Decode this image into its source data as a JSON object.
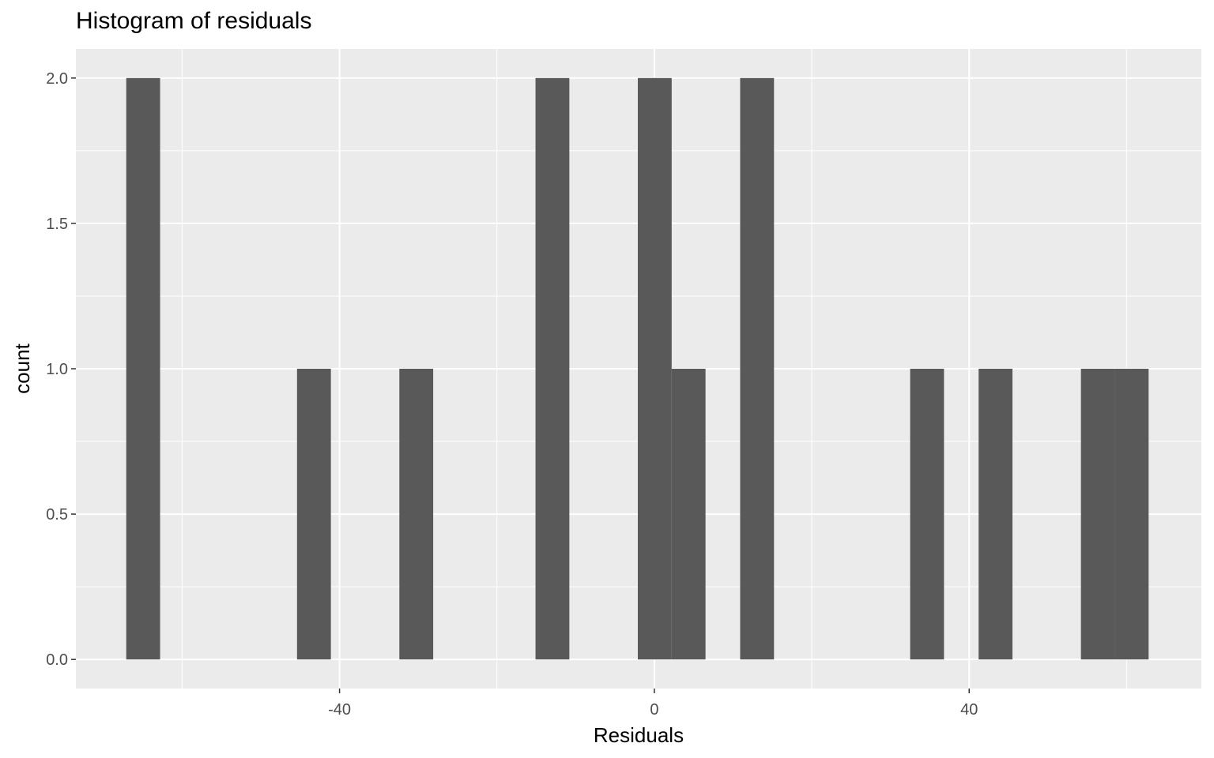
{
  "chart_data": {
    "type": "bar",
    "title": "Histogram of residuals",
    "xlabel": "Residuals",
    "ylabel": "count",
    "xlim": [
      -73.5,
      69.5
    ],
    "ylim": [
      -0.1,
      2.1
    ],
    "x_major_ticks": [
      -40,
      0,
      40
    ],
    "x_tick_labels": [
      "-40",
      "0",
      "40"
    ],
    "x_minor_ticks": [
      -60,
      -20,
      20,
      60
    ],
    "y_major_ticks": [
      0,
      0.5,
      1,
      1.5,
      2
    ],
    "y_tick_labels": [
      "0.0",
      "0.5",
      "1.0",
      "1.5",
      "2.0"
    ],
    "y_minor_ticks": [
      0.25,
      0.75,
      1.25,
      1.75
    ],
    "grid": true,
    "bin_width": 4.33,
    "bins": [
      {
        "x_start": -67.1,
        "x_end": -62.8,
        "count": 2
      },
      {
        "x_start": -45.4,
        "x_end": -41.1,
        "count": 1
      },
      {
        "x_start": -32.4,
        "x_end": -28.1,
        "count": 1
      },
      {
        "x_start": -15.1,
        "x_end": -10.8,
        "count": 2
      },
      {
        "x_start": -2.1,
        "x_end": 2.2,
        "count": 2
      },
      {
        "x_start": 2.2,
        "x_end": 6.5,
        "count": 1
      },
      {
        "x_start": 10.9,
        "x_end": 15.2,
        "count": 2
      },
      {
        "x_start": 32.5,
        "x_end": 36.8,
        "count": 1
      },
      {
        "x_start": 41.2,
        "x_end": 45.5,
        "count": 1
      },
      {
        "x_start": 54.2,
        "x_end": 58.5,
        "count": 1
      },
      {
        "x_start": 58.5,
        "x_end": 62.8,
        "count": 1
      }
    ],
    "colors": {
      "panel": "#ebebeb",
      "grid": "#ffffff",
      "bar": "#595959",
      "tick": "#333333"
    }
  }
}
